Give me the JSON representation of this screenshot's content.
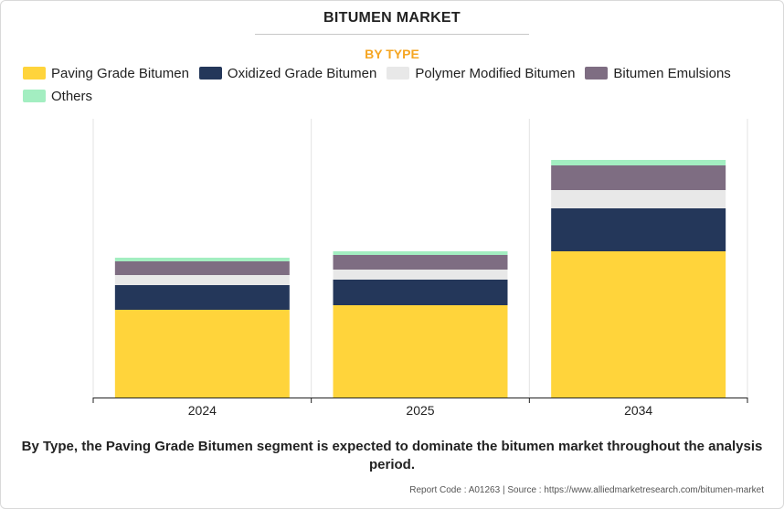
{
  "header": {
    "title": "BITUMEN MARKET",
    "subtitle": "BY TYPE",
    "subtitle_color": "#f5a623"
  },
  "chart_data": {
    "type": "bar",
    "stacked": true,
    "categories": [
      "2024",
      "2025",
      "2034"
    ],
    "series": [
      {
        "name": "Paving Grade Bitumen",
        "color": "#ffd43b",
        "values": [
          96,
          101,
          160
        ]
      },
      {
        "name": "Oxidized Grade Bitumen",
        "color": "#24375a",
        "values": [
          27,
          28,
          47
        ]
      },
      {
        "name": "Polymer Modified Bitumen",
        "color": "#e8e8e8",
        "values": [
          11,
          11,
          20
        ]
      },
      {
        "name": "Bitumen Emulsions",
        "color": "#7e6d82",
        "values": [
          15,
          16,
          27
        ]
      },
      {
        "name": "Others",
        "color": "#a3eec1",
        "values": [
          4,
          4,
          6
        ]
      }
    ],
    "ylim": [
      0,
      305
    ],
    "grid": "vertical-separators",
    "legend_position": "top"
  },
  "caption": "By Type, the Paving Grade Bitumen segment is expected to dominate the bitumen market throughout the analysis period.",
  "footer": "Report Code : A01263  |  Source : https://www.alliedmarketresearch.com/bitumen-market"
}
